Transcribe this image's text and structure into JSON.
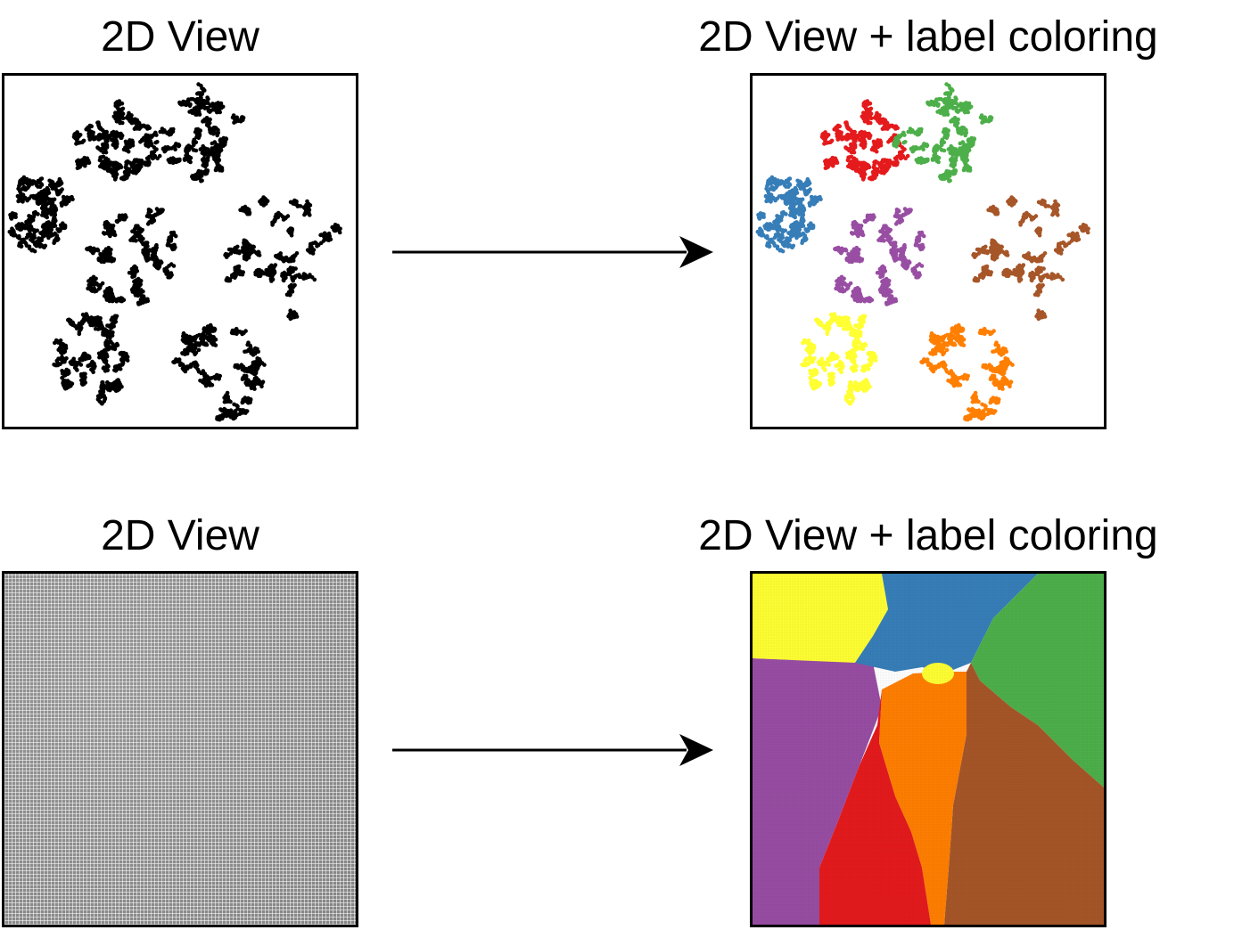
{
  "panels": {
    "top_left_title": "2D View",
    "top_right_title": "2D View + label coloring",
    "bottom_left_title": "2D View",
    "bottom_right_title": "2D View + label coloring"
  },
  "colors": {
    "plain_points": "#000000",
    "red": "#e41a1c",
    "green": "#4daf4a",
    "blue": "#377eb8",
    "purple": "#984ea3",
    "brown": "#a65628",
    "yellow": "#ffff33",
    "orange": "#ff7f00",
    "grid_gray": "#8c8c8c"
  },
  "clusters": [
    {
      "label": "red"
    },
    {
      "label": "green"
    },
    {
      "label": "blue"
    },
    {
      "label": "purple"
    },
    {
      "label": "brown"
    },
    {
      "label": "yellow"
    },
    {
      "label": "orange"
    }
  ]
}
